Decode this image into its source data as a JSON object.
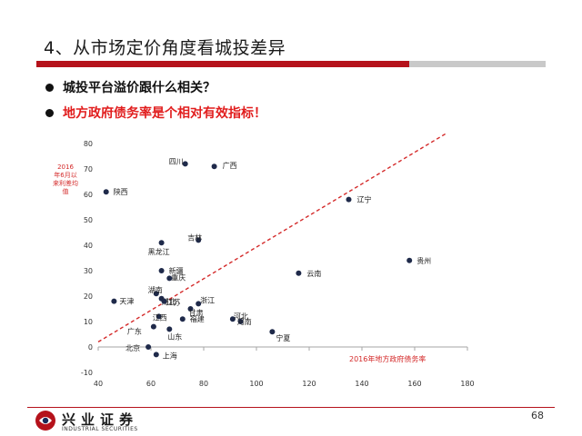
{
  "slide": {
    "title": "4、从市场定价角度看城投差异",
    "bullets": [
      "城投平台溢价跟什么相关？",
      "地方政府债务率是个相对有效指标！"
    ],
    "page_number": "68"
  },
  "logo": {
    "name_cn": "兴业证券",
    "name_en": "INDUSTRIAL SECURITIES"
  },
  "colors": {
    "accent_red": "#b5121b",
    "highlight_red": "#e11d1d",
    "point": "#1f2a4a",
    "trend": "#d42a2a"
  },
  "chart_data": {
    "type": "scatter",
    "title": "",
    "xlabel": "2016年地方政府债务率",
    "ylabel": "2016年6月以来利差均值",
    "xlim": [
      40,
      180
    ],
    "ylim": [
      -10,
      80
    ],
    "x_ticks": [
      40,
      60,
      80,
      100,
      120,
      140,
      160,
      180
    ],
    "y_ticks": [
      -10,
      0,
      10,
      20,
      30,
      40,
      50,
      60,
      70,
      80
    ],
    "grid": false,
    "points": [
      {
        "label": "四川",
        "x": 73,
        "y": 72
      },
      {
        "label": "广西",
        "x": 84,
        "y": 71
      },
      {
        "label": "陕西",
        "x": 43,
        "y": 61
      },
      {
        "label": "辽宁",
        "x": 135,
        "y": 58
      },
      {
        "label": "吉林",
        "x": 78,
        "y": 42
      },
      {
        "label": "黑龙江",
        "x": 64,
        "y": 41
      },
      {
        "label": "贵州",
        "x": 158,
        "y": 34
      },
      {
        "label": "云南",
        "x": 116,
        "y": 29
      },
      {
        "label": "新疆",
        "x": 64,
        "y": 30
      },
      {
        "label": "重庆",
        "x": 67,
        "y": 27
      },
      {
        "label": "湖南",
        "x": 62,
        "y": 21
      },
      {
        "label": "湖北",
        "x": 64,
        "y": 19
      },
      {
        "label": "江苏",
        "x": 65,
        "y": 18
      },
      {
        "label": "天津",
        "x": 46,
        "y": 18
      },
      {
        "label": "浙江",
        "x": 78,
        "y": 17
      },
      {
        "label": "甘肃",
        "x": 75,
        "y": 15
      },
      {
        "label": "江西",
        "x": 63,
        "y": 12
      },
      {
        "label": "河北",
        "x": 91,
        "y": 11
      },
      {
        "label": "河南",
        "x": 94,
        "y": 10
      },
      {
        "label": "福建",
        "x": 72,
        "y": 11
      },
      {
        "label": "广东",
        "x": 61,
        "y": 8
      },
      {
        "label": "山东",
        "x": 67,
        "y": 7
      },
      {
        "label": "宁夏",
        "x": 106,
        "y": 6
      },
      {
        "label": "北京",
        "x": 59,
        "y": 0
      },
      {
        "label": "上海",
        "x": 62,
        "y": -3
      }
    ],
    "trendline": {
      "from": [
        40,
        2
      ],
      "to": [
        172,
        84
      ]
    }
  }
}
